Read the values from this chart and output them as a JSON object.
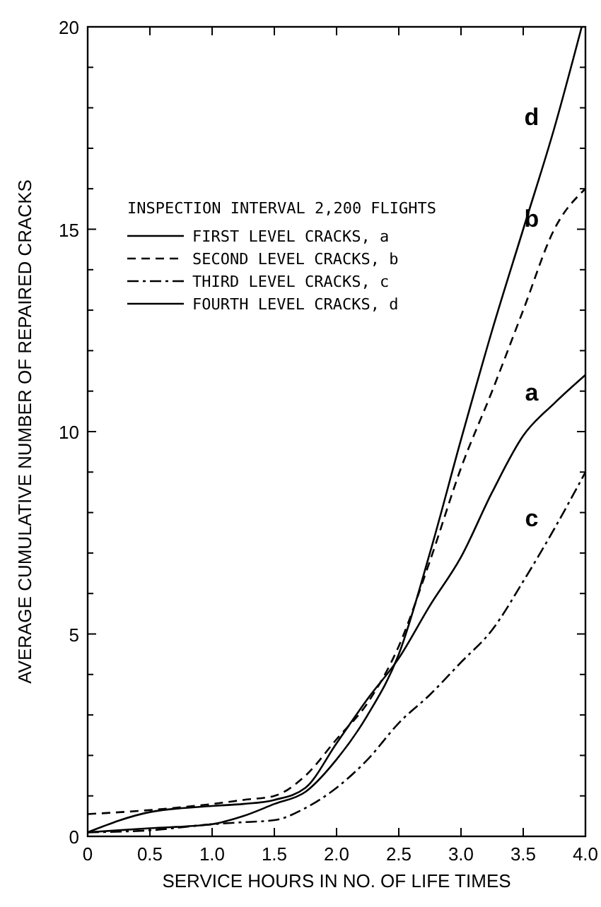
{
  "chart_data": {
    "type": "line",
    "xlabel": "SERVICE HOURS IN NO. OF LIFE TIMES",
    "ylabel": "AVERAGE CUMULATIVE NUMBER OF REPAIRED CRACKS",
    "legend_title": "INSPECTION INTERVAL 2,200 FLIGHTS",
    "legend": "top left",
    "marker": "none",
    "xlim": [
      0,
      4
    ],
    "ylim": [
      0,
      20
    ],
    "xticks": [
      0,
      0.5,
      {
        "value": 1,
        "label": "1.0"
      },
      1.5,
      {
        "value": 2,
        "label": "2.0"
      },
      2.5,
      {
        "value": 3,
        "label": "3.0"
      },
      3.5,
      {
        "value": 4,
        "label": "4.0"
      }
    ],
    "yticks": [
      0,
      {
        "value": 1,
        "label": null
      },
      {
        "value": 2,
        "label": null
      },
      {
        "value": 3,
        "label": null
      },
      {
        "value": 4,
        "label": null
      },
      5,
      {
        "value": 6,
        "label": null
      },
      {
        "value": 7,
        "label": null
      },
      {
        "value": 8,
        "label": null
      },
      {
        "value": 9,
        "label": null
      },
      10,
      {
        "value": 11,
        "label": null
      },
      {
        "value": 12,
        "label": null
      },
      {
        "value": 13,
        "label": null
      },
      {
        "value": 14,
        "label": null
      },
      15,
      {
        "value": 16,
        "label": null
      },
      {
        "value": 17,
        "label": null
      },
      {
        "value": 18,
        "label": null
      },
      {
        "value": 19,
        "label": null
      },
      20
    ],
    "x": [
      0,
      0.5,
      1,
      1.25,
      1.5,
      1.75,
      2,
      2.25,
      2.5,
      2.75,
      3,
      3.25,
      3.5,
      3.75,
      4
    ],
    "series": [
      {
        "name": "FIRST LEVEL CRACKS, a",
        "color": "#000000",
        "line_style": "solid",
        "values": [
          0.1,
          0.6,
          0.75,
          0.8,
          0.9,
          1.2,
          2.3,
          3.4,
          4.4,
          5.7,
          6.9,
          8.5,
          9.9,
          10.7,
          11.4
        ]
      },
      {
        "name": "SECOND LEVEL CRACKS, b",
        "color": "#000000",
        "line_style": "dashed",
        "values": [
          0.55,
          0.65,
          0.8,
          0.9,
          1.0,
          1.5,
          2.4,
          3.3,
          4.7,
          6.8,
          9.1,
          11,
          13,
          15,
          16
        ]
      },
      {
        "name": "THIRD LEVEL CRACKS, c",
        "color": "#000000",
        "line_style": "dashdot",
        "values": [
          0.1,
          0.15,
          0.3,
          0.35,
          0.4,
          0.7,
          1.2,
          1.9,
          2.8,
          3.5,
          4.3,
          5.1,
          6.3,
          7.6,
          9.0
        ]
      },
      {
        "name": "FOURTH LEVEL CRACKS, d",
        "color": "#000000",
        "line_style": "solid",
        "x": [
          0,
          0.5,
          1,
          1.25,
          1.5,
          1.75,
          2,
          2.25,
          2.5,
          2.75,
          3,
          3.25,
          3.5,
          3.75,
          3.97
        ],
        "values": [
          0.1,
          0.2,
          0.3,
          0.5,
          0.8,
          1.1,
          1.9,
          3.0,
          4.5,
          7.0,
          9.8,
          12.5,
          15,
          17.5,
          20
        ]
      }
    ],
    "annotations": [
      "a",
      "b",
      "c",
      "d"
    ]
  }
}
